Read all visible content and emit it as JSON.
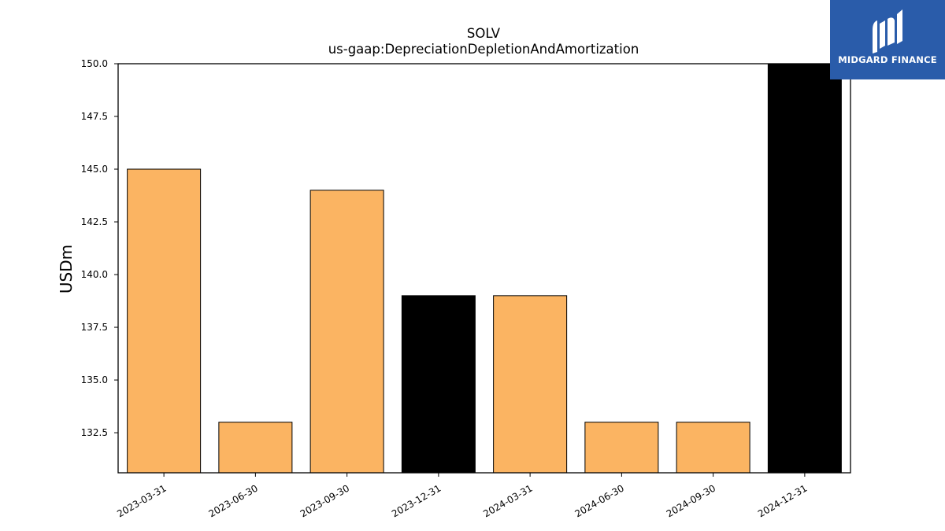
{
  "logo": {
    "text": "MIDGARD FINANCE",
    "background": "#2a5caa"
  },
  "chart_data": {
    "type": "bar",
    "title": "SOLV",
    "subtitle": "us-gaap:DepreciationDepletionAndAmortization",
    "xlabel": "",
    "ylabel": "USDm",
    "ylim": [
      130.6,
      150.0
    ],
    "yticks": [
      "132.5",
      "135.0",
      "137.5",
      "140.0",
      "142.5",
      "145.0",
      "147.5",
      "150.0"
    ],
    "categories": [
      "2023-03-31",
      "2023-06-30",
      "2023-09-30",
      "2023-12-31",
      "2024-03-31",
      "2024-06-30",
      "2024-09-30",
      "2024-12-31"
    ],
    "values": [
      145,
      133,
      144,
      139,
      139,
      133,
      133,
      150
    ],
    "bar_colors": [
      "#fbb462",
      "#fbb462",
      "#fbb462",
      "#000000",
      "#fbb462",
      "#fbb462",
      "#fbb462",
      "#000000"
    ],
    "grid": false,
    "legend": "none"
  }
}
